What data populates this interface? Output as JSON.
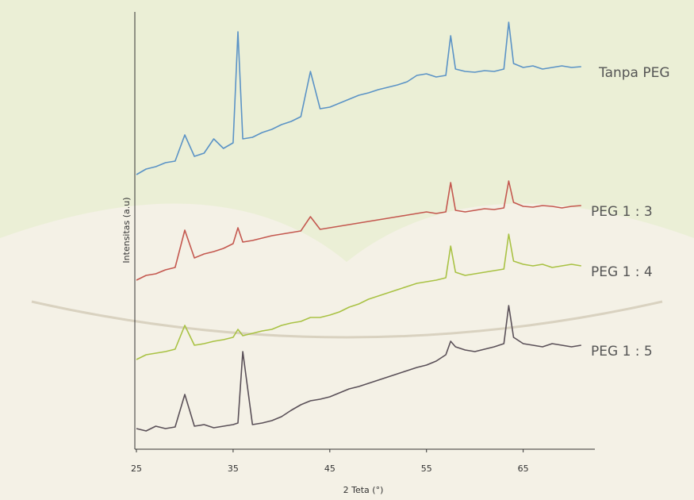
{
  "chart_data": {
    "type": "line",
    "x_label": "2 Teta (°)",
    "y_label": "Intensitas (a.u)",
    "x": [
      25,
      26,
      27,
      28,
      29,
      30,
      31,
      32,
      33,
      34,
      35,
      35.5,
      36,
      37,
      38,
      39,
      40,
      41,
      42,
      43,
      44,
      45,
      46,
      47,
      48,
      49,
      50,
      51,
      52,
      53,
      54,
      55,
      56,
      57,
      57.5,
      58,
      59,
      60,
      61,
      62,
      63,
      63.5,
      64,
      65,
      66,
      67,
      68,
      69,
      70,
      71
    ],
    "xlim": [
      25,
      72
    ],
    "xticks": [
      25,
      35,
      45,
      55,
      65
    ],
    "ylim": [
      0,
      550
    ],
    "series": [
      {
        "name": "Tanpa PEG",
        "color": "#5b93c6",
        "values": [
          345,
          352,
          355,
          360,
          362,
          395,
          368,
          372,
          390,
          378,
          385,
          525,
          390,
          392,
          398,
          402,
          408,
          412,
          418,
          475,
          428,
          430,
          435,
          440,
          445,
          448,
          452,
          455,
          458,
          462,
          470,
          472,
          468,
          470,
          520,
          478,
          475,
          474,
          476,
          475,
          478,
          537,
          485,
          480,
          482,
          478,
          480,
          482,
          480,
          481
        ]
      },
      {
        "name": "PEG 1 : 3",
        "color": "#c4584f",
        "values": [
          212,
          218,
          220,
          225,
          228,
          275,
          240,
          245,
          248,
          252,
          258,
          278,
          260,
          262,
          265,
          268,
          270,
          272,
          274,
          292,
          276,
          278,
          280,
          282,
          284,
          286,
          288,
          290,
          292,
          294,
          296,
          298,
          296,
          298,
          335,
          300,
          298,
          300,
          302,
          301,
          303,
          337,
          310,
          305,
          304,
          306,
          305,
          303,
          305,
          306
        ]
      },
      {
        "name": "PEG 1 : 4",
        "color": "#a9c244",
        "values": [
          112,
          118,
          120,
          122,
          125,
          155,
          130,
          132,
          135,
          137,
          140,
          150,
          142,
          145,
          148,
          150,
          155,
          158,
          160,
          165,
          165,
          168,
          172,
          178,
          182,
          188,
          192,
          196,
          200,
          204,
          208,
          210,
          212,
          215,
          255,
          222,
          218,
          220,
          222,
          224,
          226,
          270,
          236,
          232,
          230,
          232,
          228,
          230,
          232,
          230
        ]
      },
      {
        "name": "PEG 1 : 5",
        "color": "#5a5058",
        "values": [
          25,
          22,
          28,
          25,
          27,
          68,
          28,
          30,
          26,
          28,
          30,
          32,
          122,
          30,
          32,
          35,
          40,
          48,
          55,
          60,
          62,
          65,
          70,
          75,
          78,
          82,
          86,
          90,
          94,
          98,
          102,
          105,
          110,
          118,
          135,
          128,
          124,
          122,
          125,
          128,
          132,
          180,
          140,
          132,
          130,
          128,
          132,
          130,
          128,
          130
        ]
      }
    ]
  }
}
